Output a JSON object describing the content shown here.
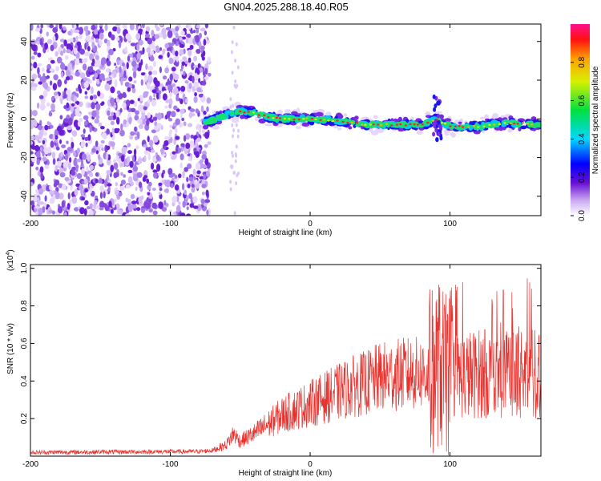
{
  "title": "GN04.2025.288.18.40.R05",
  "chart_data": [
    {
      "type": "heatmap",
      "title": "GN04.2025.288.18.40.R05",
      "xlabel": "Height of straight line (km)",
      "ylabel": "Frequency (Hz)",
      "xlim": [
        -200,
        165
      ],
      "ylim": [
        -50,
        49
      ],
      "xticks": [
        -200,
        -100,
        0,
        100
      ],
      "yticks": [
        -40,
        -20,
        0,
        20,
        40
      ],
      "colorbar": {
        "label": "Normalized spectral amplitude",
        "ticks": [
          0.0,
          0.2,
          0.4,
          0.6,
          0.8
        ],
        "range": [
          0,
          1
        ]
      },
      "signal_track": {
        "description_points_km": [
          -75,
          -60,
          -50,
          -40,
          -30,
          -20,
          0,
          20,
          40,
          60,
          80,
          90,
          100,
          120,
          140,
          165
        ],
        "center_freq_hz": [
          -2,
          2,
          4,
          3,
          1,
          0,
          0,
          -1,
          -3,
          -3,
          -3,
          0,
          -4,
          -4,
          -2,
          -3
        ]
      }
    },
    {
      "type": "line",
      "xlabel": "Height of straight line (km)",
      "ylabel": "SNR (10 * v/v)",
      "scale_label": "(x10",
      "scale_exp": "4",
      "scale_close": ")",
      "xlim": [
        -200,
        165
      ],
      "ylim": [
        0,
        1.02
      ],
      "xticks": [
        -200,
        -100,
        0,
        100
      ],
      "yticks": [
        0.2,
        0.4,
        0.6,
        0.8,
        1.0
      ],
      "series": [
        {
          "name": "SNR",
          "color": "#e8322e",
          "envelope_x": [
            -200,
            -80,
            -70,
            -60,
            -55,
            -50,
            -45,
            -40,
            -30,
            -20,
            -10,
            0,
            10,
            20,
            30,
            40,
            50,
            60,
            70,
            80,
            88,
            92,
            95,
            98,
            100,
            110,
            120,
            130,
            140,
            150,
            160,
            165
          ],
          "envelope_y": [
            0.02,
            0.025,
            0.03,
            0.06,
            0.12,
            0.08,
            0.1,
            0.12,
            0.17,
            0.22,
            0.25,
            0.28,
            0.31,
            0.34,
            0.37,
            0.39,
            0.42,
            0.43,
            0.44,
            0.44,
            0.45,
            0.5,
            0.45,
            0.4,
            0.43,
            0.43,
            0.44,
            0.44,
            0.44,
            0.45,
            0.44,
            0.44
          ]
        }
      ]
    }
  ]
}
